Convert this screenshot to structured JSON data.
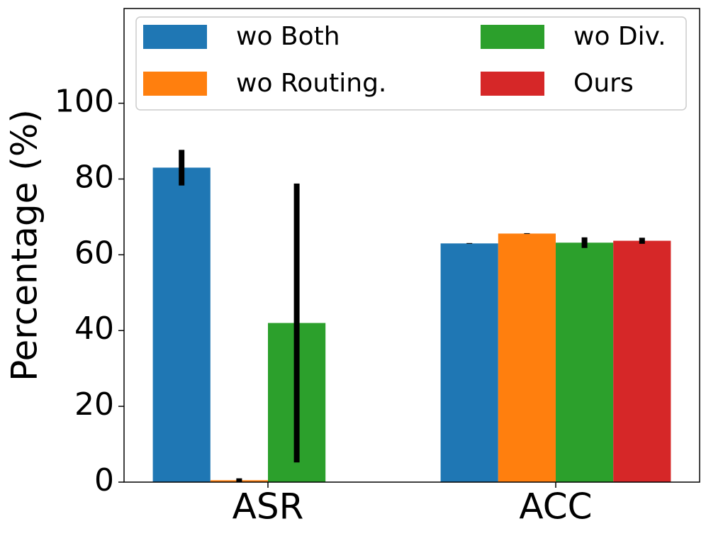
{
  "chart_data": {
    "type": "bar",
    "ylabel": "Percentage (%)",
    "categories": [
      "ASR",
      "ACC"
    ],
    "series": [
      {
        "name": "wo Both",
        "color": "#1f77b4",
        "values": [
          83,
          63
        ],
        "errors": [
          4.7,
          0.1
        ]
      },
      {
        "name": "wo Routing.",
        "color": "#ff7f0e",
        "values": [
          0.5,
          65.6
        ],
        "errors": [
          0.5,
          0.1
        ]
      },
      {
        "name": "wo Div.",
        "color": "#2ca02c",
        "values": [
          42,
          63.2
        ],
        "errors": [
          36.8,
          1.4
        ]
      },
      {
        "name": "Ours",
        "color": "#d62728",
        "values": [
          0,
          63.7
        ],
        "errors": [
          0,
          0.8
        ]
      }
    ],
    "ylim": [
      0,
      125
    ],
    "yticks": [
      0,
      20,
      40,
      60,
      80,
      100
    ],
    "error_color": "#000000",
    "legend": "top"
  }
}
